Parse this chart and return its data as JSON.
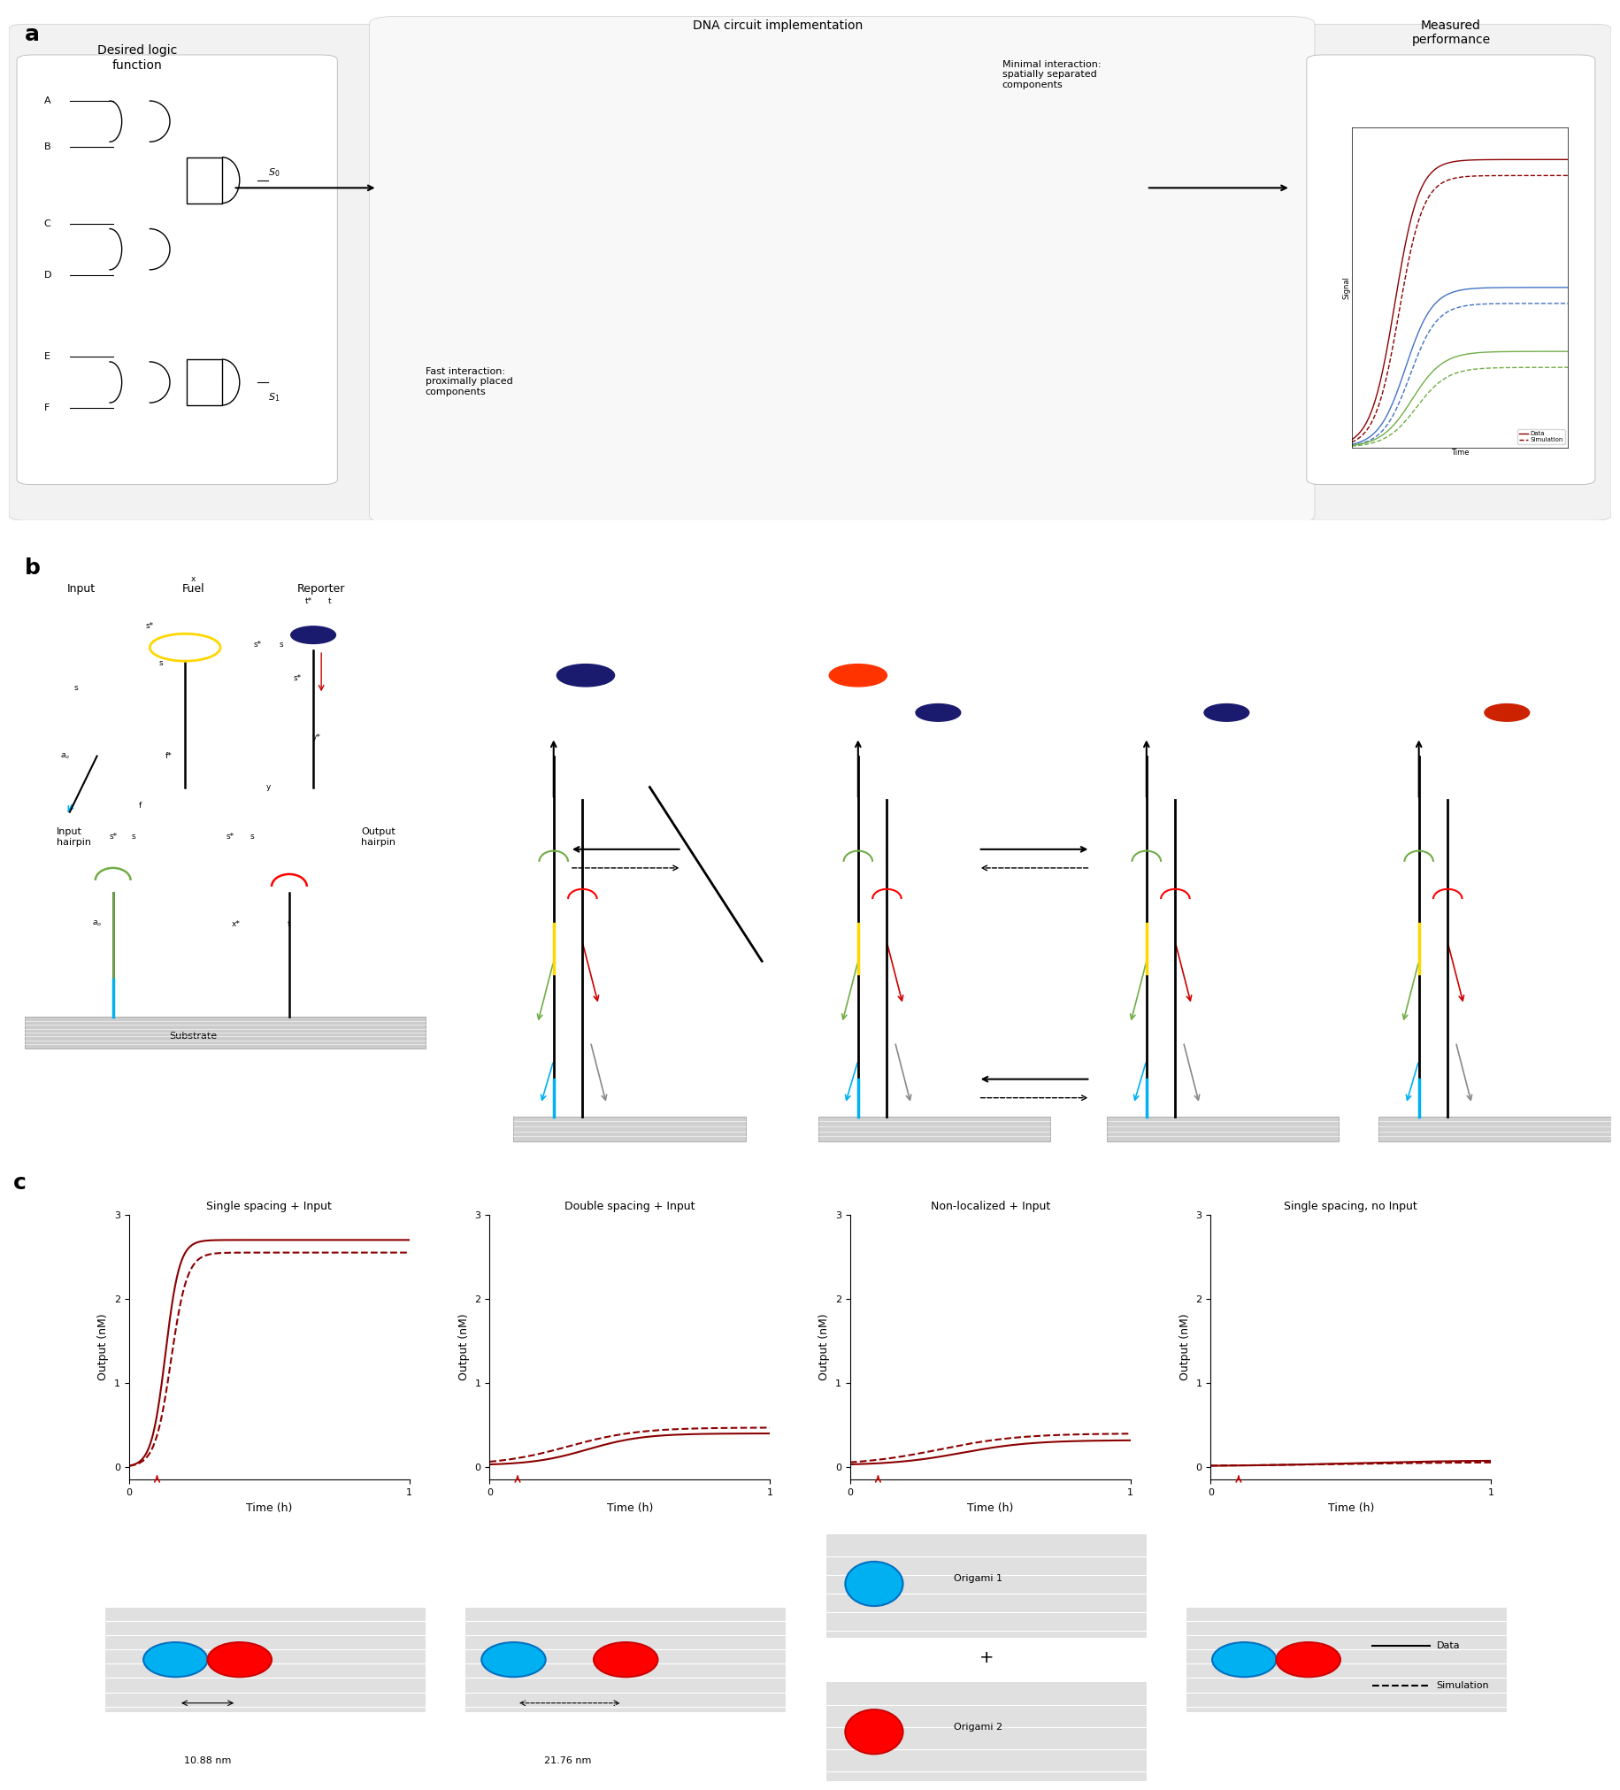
{
  "fig_width": 18.11,
  "fig_height": 20.65,
  "bg_color": "#ffffff",
  "panel_c_titles": [
    "Single spacing + Input",
    "Double spacing + Input",
    "Non-localized + Input",
    "Single spacing, no Input"
  ],
  "panel_c_ylabel": "Output (nM)",
  "panel_c_xlabel": "Time (h)",
  "dark_red": "#8B0000",
  "red": "#CC0000"
}
